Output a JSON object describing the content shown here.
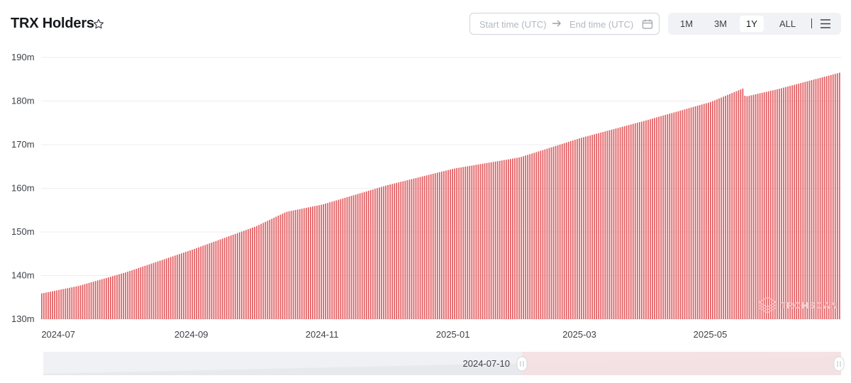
{
  "header": {
    "title": "TRX Holders",
    "star_icon": "star-outline-icon"
  },
  "date_range": {
    "start_placeholder": "Start time (UTC)",
    "end_placeholder": "End time (UTC)",
    "arrow_icon": "arrow-right-icon",
    "calendar_icon": "calendar-icon"
  },
  "range_buttons": [
    {
      "label": "1M",
      "active": false
    },
    {
      "label": "3M",
      "active": false
    },
    {
      "label": "1Y",
      "active": true
    },
    {
      "label": "ALL",
      "active": false
    }
  ],
  "menu_icon": "hamburger-menu-icon",
  "watermark": "TRONSCAN",
  "navigator": {
    "handle_label": "2024-07-10",
    "selected_start_fraction": 0.6,
    "selected_end_fraction": 1.0
  },
  "colors": {
    "bar": "#e35d60",
    "grid": "#eceef1",
    "axis_text": "#3d4248",
    "navigator_bg": "#f0f1f4",
    "navigator_selected": "#f6dfe1"
  },
  "chart_data": {
    "type": "bar",
    "title": "TRX Holders",
    "y_unit": "m",
    "ylim": [
      130,
      190
    ],
    "yticks": [
      "130m",
      "140m",
      "150m",
      "160m",
      "170m",
      "180m",
      "190m"
    ],
    "x_range": [
      "2024-06-23",
      "2025-06-30"
    ],
    "xticks": [
      "2024-07",
      "2024-09",
      "2024-11",
      "2025-01",
      "2025-03",
      "2025-05"
    ],
    "grid": true,
    "bar_count": 372,
    "series": [
      {
        "points": [
          [
            "2024-06-23",
            135.9
          ],
          [
            "2024-07-10",
            137.6
          ],
          [
            "2024-08-01",
            140.7
          ],
          [
            "2024-09-01",
            145.9
          ],
          [
            "2024-10-01",
            151.3
          ],
          [
            "2024-10-15",
            154.6
          ],
          [
            "2024-11-01",
            156.3
          ],
          [
            "2024-12-01",
            160.7
          ],
          [
            "2025-01-01",
            164.5
          ],
          [
            "2025-02-01",
            167.1
          ],
          [
            "2025-03-01",
            171.5
          ],
          [
            "2025-04-01",
            175.6
          ],
          [
            "2025-05-01",
            179.8
          ],
          [
            "2025-05-16",
            182.9
          ],
          [
            "2025-05-17",
            181.0
          ],
          [
            "2025-06-01",
            182.7
          ],
          [
            "2025-06-30",
            186.5
          ]
        ]
      }
    ]
  }
}
